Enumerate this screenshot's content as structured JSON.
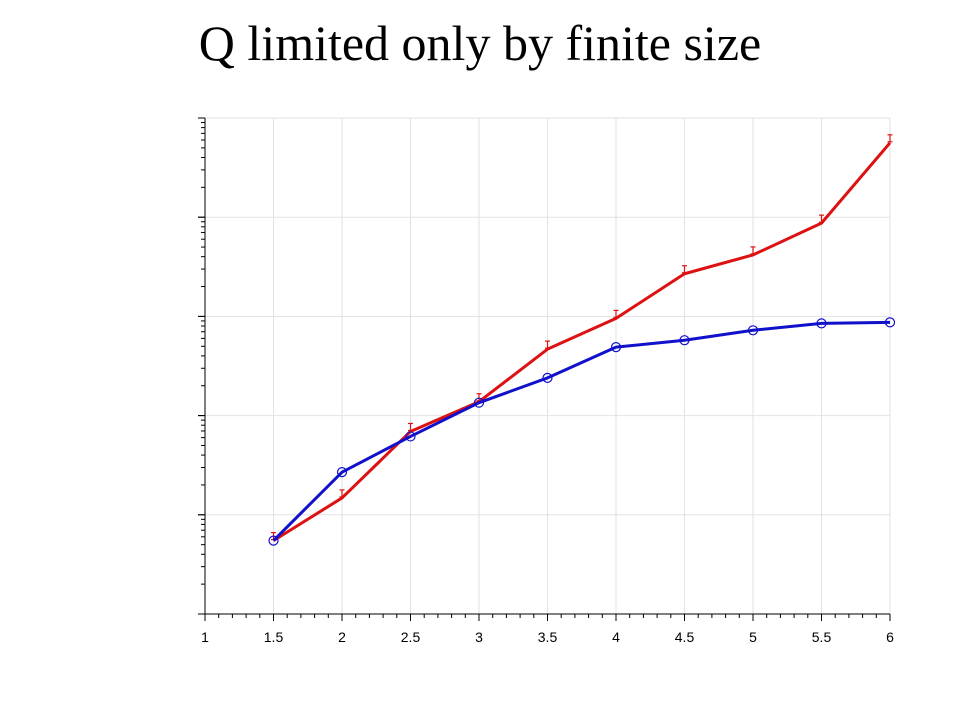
{
  "title": "Q limited only by finite size",
  "chart_data": {
    "type": "line",
    "title": "Q limited only by finite size",
    "xlabel": "",
    "ylabel": "",
    "xlim": [
      1,
      6
    ],
    "x_ticks": [
      1,
      1.5,
      2,
      2.5,
      3,
      3.5,
      4,
      4.5,
      5,
      5.5,
      6
    ],
    "x_tick_labels": [
      "1",
      "1.5",
      "2",
      "2.5",
      "3",
      "3.5",
      "4",
      "4.5",
      "5",
      "5.5",
      "6"
    ],
    "y_scale": "log",
    "y_decades": 5,
    "y_tick_labels_visible": false,
    "grid": true,
    "series": [
      {
        "color": "#dd1111",
        "marker": "error-bar",
        "x": [
          1.5,
          2,
          2.5,
          3,
          3.5,
          4,
          4.5,
          5,
          5.5,
          6
        ],
        "log10_y": [
          0.74,
          1.17,
          1.84,
          2.14,
          2.67,
          2.98,
          3.43,
          3.62,
          3.94,
          4.75
        ]
      },
      {
        "color": "#1111cc",
        "marker": "circle",
        "x": [
          1.5,
          2,
          2.5,
          3,
          3.5,
          4,
          4.5,
          5,
          5.5,
          6
        ],
        "log10_y": [
          0.74,
          1.43,
          1.79,
          2.13,
          2.38,
          2.69,
          2.76,
          2.86,
          2.93,
          2.94
        ]
      }
    ]
  }
}
